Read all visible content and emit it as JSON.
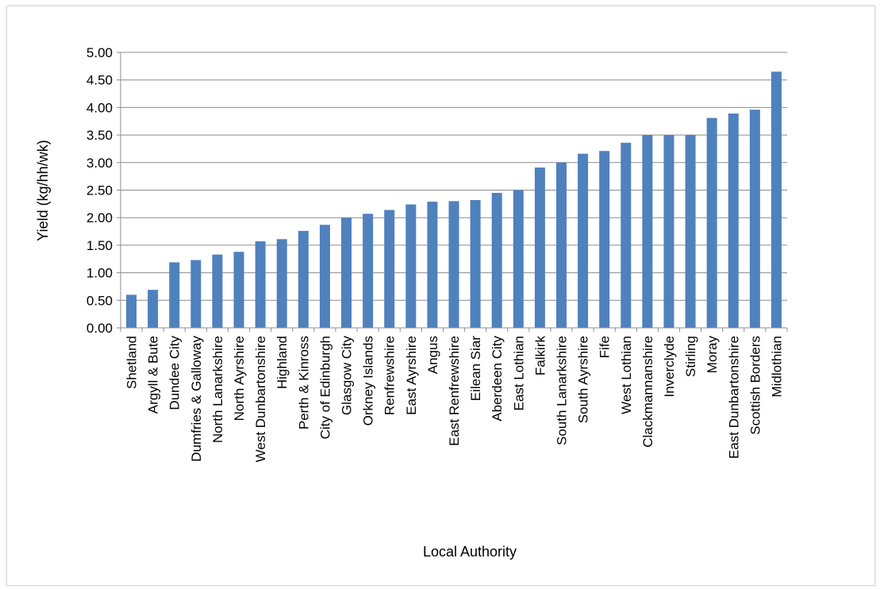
{
  "chart_data": {
    "type": "bar",
    "xlabel": "Local Authority",
    "ylabel": "Yield  (kg/hh/wk)",
    "ylim": [
      0,
      5
    ],
    "ytick_step": 0.5,
    "ytick_labels": [
      "0.00",
      "0.50",
      "1.00",
      "1.50",
      "2.00",
      "2.50",
      "3.00",
      "3.50",
      "4.00",
      "4.50",
      "5.00"
    ],
    "grid": true,
    "bar_color": "#4f81bd",
    "categories": [
      "Shetland",
      "Argyll & Bute",
      "Dundee City",
      "Dumfries & Galloway",
      "North Lanarkshire",
      "North Ayrshire",
      "West Dunbartonshire",
      "Highland",
      "Perth & Kinross",
      "City of Edinburgh",
      "Glasgow City",
      "Orkney Islands",
      "Renfrewshire",
      "East Ayrshire",
      "Angus",
      "East Renfrewshire",
      "Eilean Siar",
      "Aberdeen City",
      "East Lothian",
      "Falkirk",
      "South Lanarkshire",
      "South Ayrshire",
      "Fife",
      "West Lothian",
      "Clackmannanshire",
      "Inverclyde",
      "Stirling",
      "Moray",
      "East Dunbartonshire",
      "Scottish Borders",
      "Midlothian"
    ],
    "values": [
      0.6,
      0.69,
      1.19,
      1.23,
      1.33,
      1.38,
      1.57,
      1.61,
      1.76,
      1.87,
      2.0,
      2.07,
      2.14,
      2.24,
      2.29,
      2.3,
      2.32,
      2.45,
      2.5,
      2.91,
      3.0,
      3.16,
      3.21,
      3.36,
      3.5,
      3.5,
      3.5,
      3.81,
      3.89,
      3.96,
      4.65
    ]
  }
}
